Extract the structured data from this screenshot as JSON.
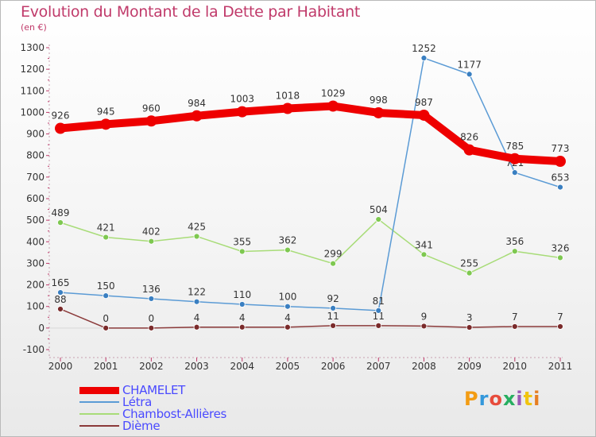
{
  "title": "Evolution du Montant de la Dette par Habitant",
  "subtitle": "(en €)",
  "logo": {
    "text": "Proxiti",
    "colors": [
      "#f39c12",
      "#3498db",
      "#e74c3c",
      "#27ae60",
      "#9b59b6",
      "#f1c40f",
      "#e67e22"
    ]
  },
  "chart_data": {
    "type": "line",
    "x": [
      "2000",
      "2001",
      "2002",
      "2003",
      "2004",
      "2005",
      "2006",
      "2007",
      "2008",
      "2009",
      "2010",
      "2011"
    ],
    "ylim": [
      -100,
      1300
    ],
    "yticks": [
      -100,
      0,
      100,
      200,
      300,
      400,
      500,
      600,
      700,
      800,
      900,
      1000,
      1100,
      1200,
      1300
    ],
    "grid": false,
    "legend_position": "bottom-left",
    "series": [
      {
        "name": "CHAMELET",
        "color": "#ee0000",
        "bold": true,
        "values": [
          926,
          945,
          960,
          984,
          1003,
          1018,
          1029,
          998,
          987,
          826,
          785,
          773
        ],
        "labels": [
          "926",
          "945",
          "960",
          "984",
          "1003",
          "1018",
          "1029",
          "998",
          "987",
          "826",
          "785",
          "773"
        ]
      },
      {
        "name": "Létra",
        "color": "#5b9bd5",
        "marker": "#3a7fc1",
        "bold": false,
        "values": [
          165,
          150,
          136,
          122,
          110,
          100,
          92,
          81,
          1252,
          1177,
          721,
          653
        ],
        "labels": [
          "165",
          "150",
          "136",
          "122",
          "110",
          "100",
          "92",
          "81",
          "1252",
          "1177",
          "721",
          "653"
        ]
      },
      {
        "name": "Chambost-Allières",
        "color": "#a8dc78",
        "marker": "#7ec850",
        "bold": false,
        "values": [
          489,
          421,
          402,
          425,
          355,
          362,
          299,
          504,
          341,
          255,
          356,
          326
        ],
        "labels": [
          "489",
          "421",
          "402",
          "425",
          "355",
          "362",
          "299",
          "504",
          "341",
          "255",
          "356",
          "326"
        ]
      },
      {
        "name": "Dième",
        "color": "#8b3a3a",
        "marker": "#7a2a2a",
        "bold": false,
        "values": [
          88,
          0,
          0,
          4,
          4,
          4,
          11,
          11,
          9,
          3,
          7,
          7
        ],
        "labels": [
          "88",
          "0",
          "0",
          "4",
          "4",
          "4",
          "11",
          "11",
          "9",
          "3",
          "7",
          "7"
        ]
      }
    ]
  }
}
